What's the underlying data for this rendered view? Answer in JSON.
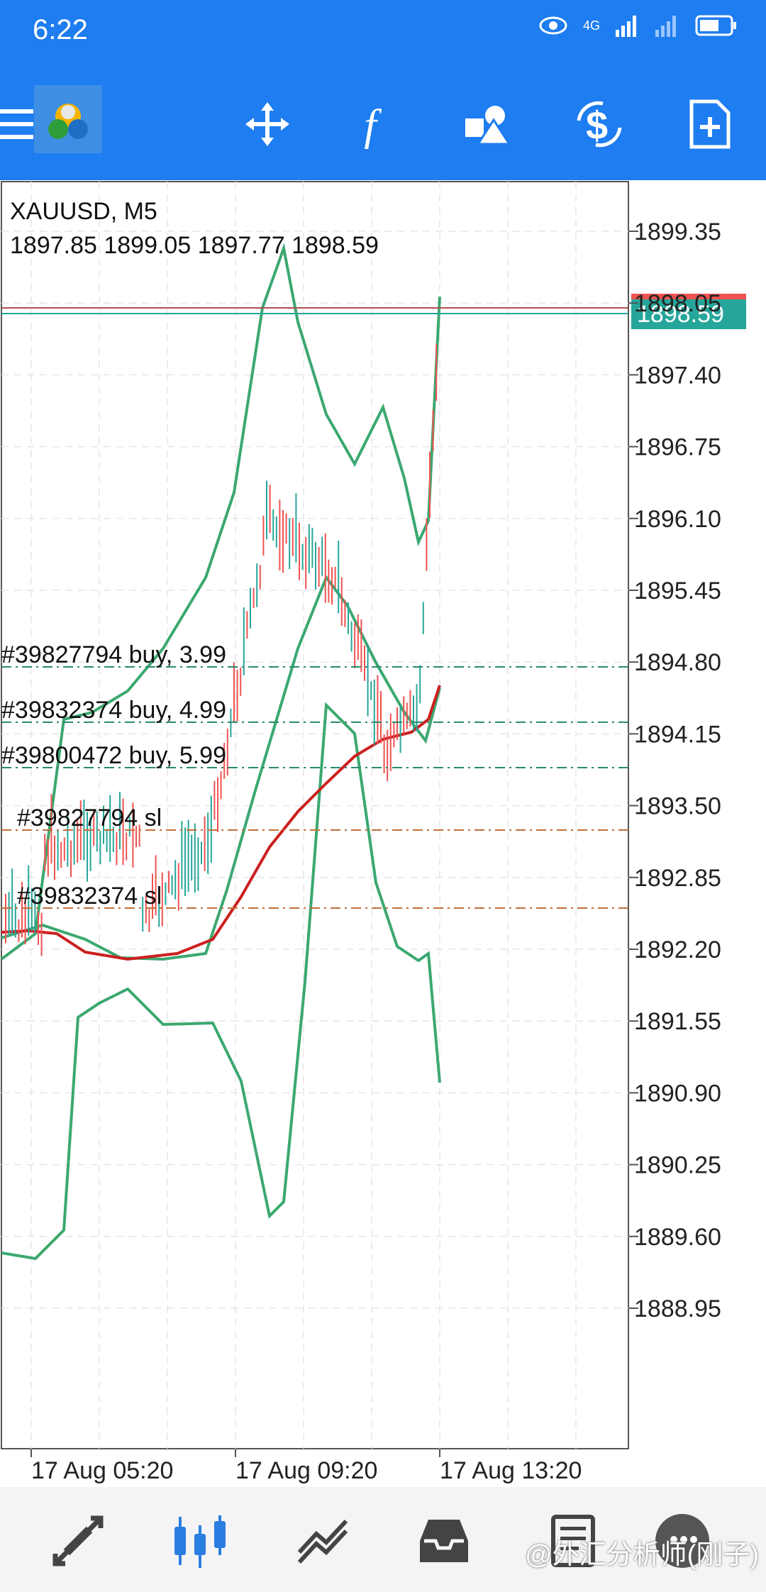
{
  "status": {
    "time": "6:22",
    "network": "4G"
  },
  "chart": {
    "symbol": "XAUUSD, M5",
    "ohlc": "1897.85 1899.05 1897.77 1898.59",
    "current_price": "1898.59",
    "price_axis": [
      "1899.35",
      "1898.05",
      "1897.40",
      "1896.75",
      "1896.10",
      "1895.45",
      "1894.80",
      "1894.15",
      "1893.50",
      "1892.85",
      "1892.20",
      "1891.55",
      "1890.90",
      "1890.25",
      "1889.60",
      "1888.95"
    ],
    "time_axis": [
      "17 Aug 05:20",
      "17 Aug 09:20",
      "17 Aug 13:20"
    ],
    "orders": [
      "#39827794 buy, 3.99",
      "#39832374 buy, 4.99",
      "#39800472 buy, 5.99",
      "#39827794 sl",
      "#39832374 sl"
    ],
    "colors": {
      "bull": "#26a69a",
      "bear": "#ef5350",
      "bands": "#3ba870",
      "ma": "#cc1f1f",
      "current": "#26a69a"
    }
  },
  "toolbar": {
    "icons": [
      "menu-icon",
      "app-logo",
      "crosshair-icon",
      "function-icon",
      "objects-icon",
      "trade-icon",
      "new-order-icon"
    ]
  },
  "nav": {
    "icons": [
      "quotes-icon",
      "chart-icon",
      "trade-nav-icon",
      "history-icon",
      "messages-icon"
    ]
  },
  "watermark": "@外汇分析师(刚子)"
}
